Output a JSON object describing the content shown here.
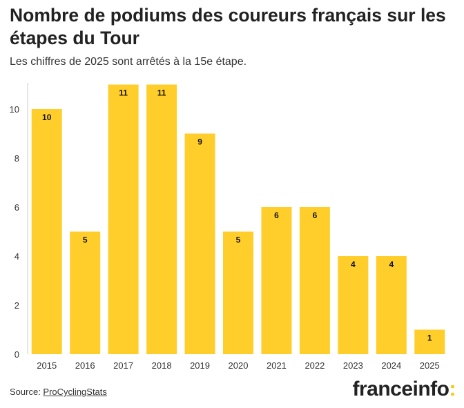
{
  "title": "Nombre de podiums des coureurs français sur les étapes du Tour",
  "subtitle": "Les chiffres de 2025 sont arrêtés à la 15e étape.",
  "source": {
    "prefix": "Source: ",
    "link_text": "ProCyclingStats"
  },
  "brand": {
    "name": "franceinfo",
    "suffix": ":"
  },
  "colors": {
    "bar": "#FFCE2B",
    "axis": "#cccccc",
    "text": "#222222",
    "accent": "#f6c900"
  },
  "chart_data": {
    "type": "bar",
    "categories": [
      "2015",
      "2016",
      "2017",
      "2018",
      "2019",
      "2020",
      "2021",
      "2022",
      "2023",
      "2024",
      "2025"
    ],
    "values": [
      10,
      5,
      11,
      11,
      9,
      5,
      6,
      6,
      4,
      4,
      1
    ],
    "title": "Nombre de podiums des coureurs français sur les étapes du Tour",
    "subtitle": "Les chiffres de 2025 sont arrêtés à la 15e étape.",
    "xlabel": "",
    "ylabel": "",
    "ylim": [
      0,
      11
    ],
    "yticks": [
      0,
      2,
      4,
      6,
      8,
      10
    ],
    "grid": false,
    "legend": "none",
    "data_labels": true
  }
}
